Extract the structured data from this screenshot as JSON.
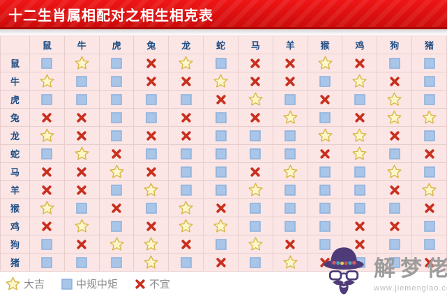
{
  "title": "十二生肖属相配对之相生相克表",
  "chart_data": {
    "type": "table",
    "title": "十二生肖属相配对之相生相克表",
    "columns": [
      "鼠",
      "牛",
      "虎",
      "兔",
      "龙",
      "蛇",
      "马",
      "羊",
      "猴",
      "鸡",
      "狗",
      "猪"
    ],
    "row_labels": [
      "鼠",
      "牛",
      "虎",
      "兔",
      "龙",
      "蛇",
      "马",
      "羊",
      "猴",
      "鸡",
      "狗",
      "猪"
    ],
    "cell_legend": {
      "star": "大吉",
      "square": "中规中矩",
      "x": "不宜"
    },
    "matrix": [
      [
        "square",
        "star",
        "square",
        "x",
        "star",
        "square",
        "x",
        "x",
        "star",
        "x",
        "square",
        "square"
      ],
      [
        "star",
        "square",
        "square",
        "x",
        "x",
        "star",
        "x",
        "x",
        "square",
        "star",
        "x",
        "square"
      ],
      [
        "square",
        "square",
        "square",
        "square",
        "square",
        "x",
        "star",
        "square",
        "x",
        "square",
        "star",
        "square"
      ],
      [
        "x",
        "x",
        "square",
        "square",
        "x",
        "square",
        "x",
        "star",
        "square",
        "x",
        "star",
        "star"
      ],
      [
        "star",
        "x",
        "square",
        "x",
        "x",
        "square",
        "square",
        "square",
        "star",
        "star",
        "x",
        "square"
      ],
      [
        "square",
        "star",
        "x",
        "square",
        "square",
        "square",
        "square",
        "square",
        "x",
        "star",
        "square",
        "x"
      ],
      [
        "x",
        "x",
        "star",
        "x",
        "square",
        "square",
        "x",
        "star",
        "square",
        "square",
        "star",
        "square"
      ],
      [
        "x",
        "x",
        "square",
        "star",
        "square",
        "square",
        "star",
        "square",
        "square",
        "square",
        "x",
        "star"
      ],
      [
        "star",
        "square",
        "x",
        "square",
        "star",
        "x",
        "square",
        "square",
        "square",
        "square",
        "square",
        "x"
      ],
      [
        "x",
        "star",
        "square",
        "x",
        "star",
        "star",
        "square",
        "square",
        "square",
        "x",
        "x",
        "square"
      ],
      [
        "square",
        "x",
        "star",
        "star",
        "x",
        "square",
        "star",
        "x",
        "square",
        "x",
        "square",
        "square"
      ],
      [
        "square",
        "square",
        "square",
        "star",
        "square",
        "x",
        "square",
        "star",
        "x",
        "square",
        "square",
        "x"
      ]
    ]
  },
  "legend": [
    {
      "symbol": "star",
      "label": "大吉"
    },
    {
      "symbol": "square",
      "label": "中规中矩"
    },
    {
      "symbol": "x",
      "label": "不宜"
    }
  ],
  "watermark": {
    "site_name": "解梦佬",
    "site_url": "www.jiemenglao.com"
  },
  "colors": {
    "banner_red": "#d80f0f",
    "banner_border": "#ab0707",
    "cell_bg": "#fbe5e5",
    "grid_line": "#e8cdcd",
    "header_text": "#1f4e85",
    "star_fill": "#fcf6c9",
    "star_stroke": "#d8b94a",
    "square_fill": "#a9c6e9",
    "square_stroke": "#8fb2dc",
    "x_red": "#c92f1d",
    "legend_text": "#8a8a8a",
    "watermark_purple": "#4e3c78"
  }
}
